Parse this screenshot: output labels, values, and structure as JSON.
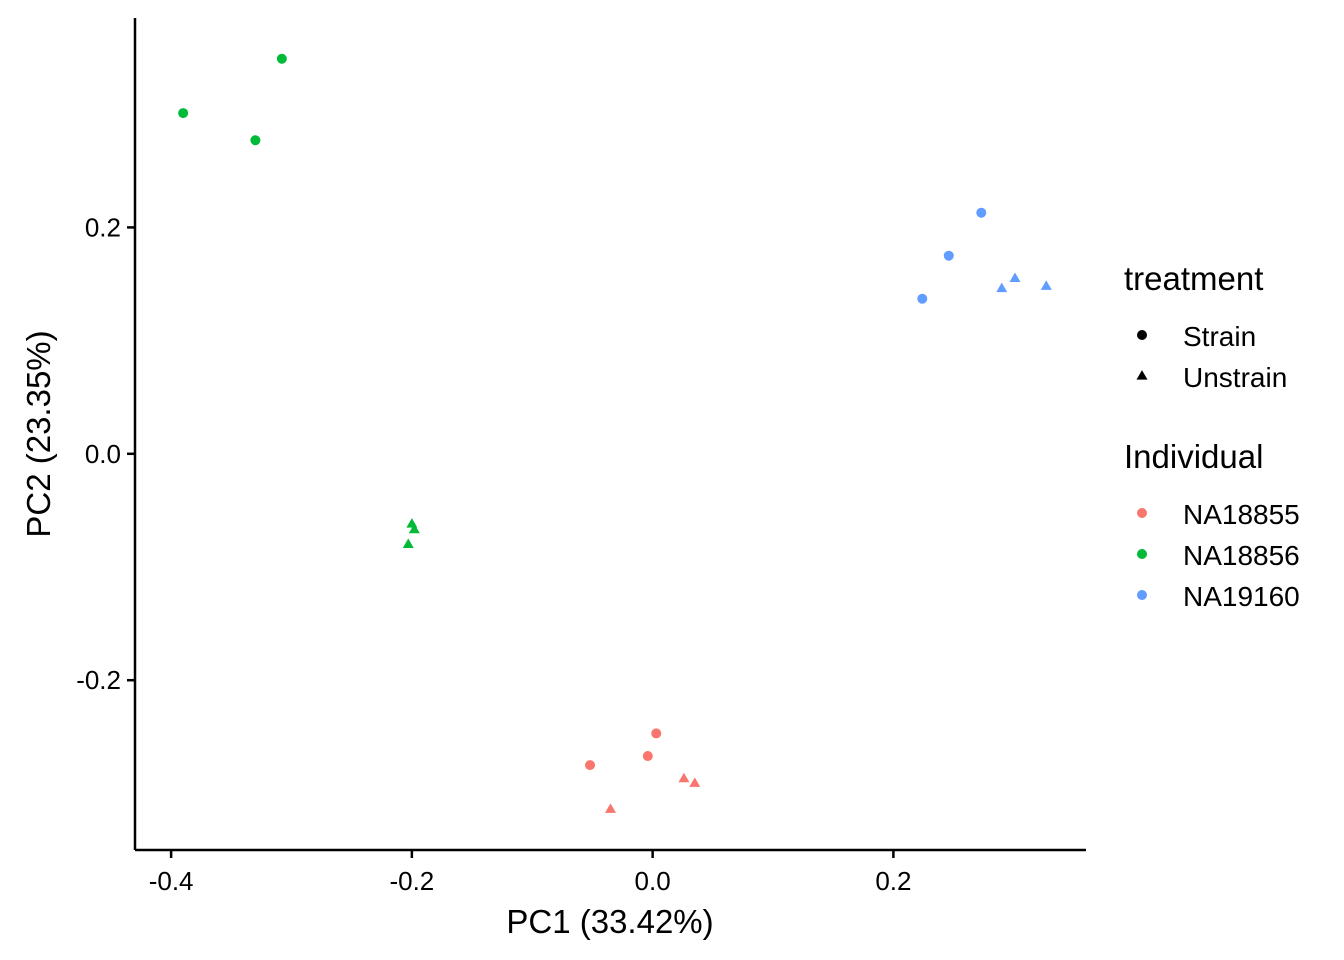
{
  "chart_data": {
    "type": "scatter",
    "title": "",
    "xlabel": "PC1 (33.42%)",
    "ylabel": "PC2 (23.35%)",
    "xlim": [
      -0.43,
      0.36
    ],
    "ylim": [
      -0.35,
      0.385
    ],
    "x_ticks": [
      -0.4,
      -0.2,
      0.0,
      0.2
    ],
    "x_tick_labels": [
      "-0.4",
      "-0.2",
      "0.0",
      "0.2"
    ],
    "y_ticks": [
      -0.2,
      0.0,
      0.2
    ],
    "y_tick_labels": [
      "-0.2",
      "0.0",
      "0.2"
    ],
    "grid": false,
    "legend_placement": "right",
    "legends": [
      {
        "title": "treatment",
        "aesthetic": "shape",
        "entries": [
          {
            "label": "Strain",
            "shape": "circle"
          },
          {
            "label": "Unstrain",
            "shape": "triangle"
          }
        ]
      },
      {
        "title": "Individual",
        "aesthetic": "color",
        "entries": [
          {
            "label": "NA18855",
            "color": "#F8766D"
          },
          {
            "label": "NA18856",
            "color": "#00BA38"
          },
          {
            "label": "NA19160",
            "color": "#619CFF"
          }
        ]
      }
    ],
    "series": [
      {
        "individual": "NA18855",
        "treatment": "Strain",
        "color": "#F8766D",
        "shape": "circle",
        "points": [
          [
            0.003,
            -0.247
          ],
          [
            -0.004,
            -0.267
          ],
          [
            -0.052,
            -0.275
          ]
        ]
      },
      {
        "individual": "NA18855",
        "treatment": "Unstrain",
        "color": "#F8766D",
        "shape": "triangle",
        "points": [
          [
            0.026,
            -0.287
          ],
          [
            0.035,
            -0.291
          ],
          [
            -0.035,
            -0.314
          ]
        ]
      },
      {
        "individual": "NA18856",
        "treatment": "Strain",
        "color": "#00BA38",
        "shape": "circle",
        "points": [
          [
            -0.308,
            0.349
          ],
          [
            -0.39,
            0.301
          ],
          [
            -0.33,
            0.277
          ]
        ]
      },
      {
        "individual": "NA18856",
        "treatment": "Unstrain",
        "color": "#00BA38",
        "shape": "triangle",
        "points": [
          [
            -0.2,
            -0.062
          ],
          [
            -0.198,
            -0.067
          ],
          [
            -0.203,
            -0.08
          ]
        ]
      },
      {
        "individual": "NA19160",
        "treatment": "Strain",
        "color": "#619CFF",
        "shape": "circle",
        "points": [
          [
            0.273,
            0.213
          ],
          [
            0.246,
            0.175
          ],
          [
            0.224,
            0.137
          ]
        ]
      },
      {
        "individual": "NA19160",
        "treatment": "Unstrain",
        "color": "#619CFF",
        "shape": "triangle",
        "points": [
          [
            0.301,
            0.155
          ],
          [
            0.29,
            0.146
          ],
          [
            0.327,
            0.148
          ]
        ]
      }
    ]
  }
}
